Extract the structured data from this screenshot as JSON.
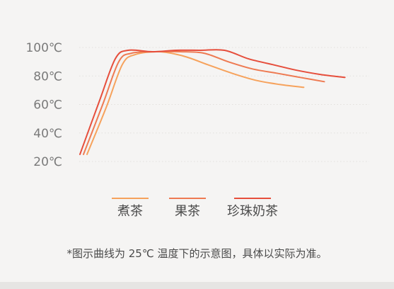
{
  "chart_data": {
    "type": "line",
    "title": "",
    "xlabel": "",
    "ylabel": "",
    "y_ticks": [
      "20℃",
      "40℃",
      "60℃",
      "80℃",
      "100℃"
    ],
    "y_tick_values": [
      20,
      40,
      60,
      80,
      100
    ],
    "ylim": [
      20,
      100
    ],
    "grid": true,
    "legend_position": "bottom-center",
    "series": [
      {
        "name": "煮茶",
        "color": "#f6a25c",
        "points": [
          [
            0,
            25
          ],
          [
            12,
            58
          ],
          [
            22,
            88
          ],
          [
            30,
            95
          ],
          [
            45,
            97
          ],
          [
            60,
            94
          ],
          [
            75,
            88
          ],
          [
            90,
            82
          ],
          [
            105,
            77
          ],
          [
            120,
            74
          ],
          [
            135,
            72
          ]
        ]
      },
      {
        "name": "果茶",
        "color": "#ee7a52",
        "points": [
          [
            0,
            25
          ],
          [
            12,
            60
          ],
          [
            22,
            90
          ],
          [
            30,
            96
          ],
          [
            45,
            97
          ],
          [
            60,
            97
          ],
          [
            75,
            96
          ],
          [
            90,
            90
          ],
          [
            105,
            85
          ],
          [
            120,
            82
          ],
          [
            135,
            79
          ],
          [
            150,
            76
          ]
        ]
      },
      {
        "name": "珍珠奶茶",
        "color": "#e64e3c",
        "points": [
          [
            0,
            25
          ],
          [
            12,
            62
          ],
          [
            22,
            92
          ],
          [
            30,
            98
          ],
          [
            45,
            97
          ],
          [
            60,
            98
          ],
          [
            75,
            98
          ],
          [
            90,
            98
          ],
          [
            105,
            92
          ],
          [
            120,
            88
          ],
          [
            135,
            84
          ],
          [
            150,
            81
          ],
          [
            165,
            79
          ]
        ]
      }
    ]
  },
  "footnote": "*图示曲线为 25℃ 温度下的示意图，具体以实际为准。"
}
